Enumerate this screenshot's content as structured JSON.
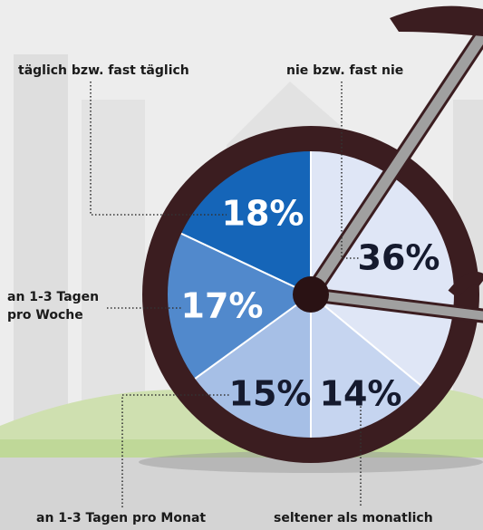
{
  "chart_data": {
    "type": "pie",
    "categories": [
      "nie bzw. fast nie",
      "seltener als monatlich",
      "an 1-3 Tagen pro Monat",
      "an 1-3 Tagen pro Woche",
      "täglich bzw. fast täglich"
    ],
    "values": [
      36,
      14,
      15,
      17,
      18
    ],
    "value_labels": [
      "36%",
      "14%",
      "15%",
      "17%",
      "18%"
    ],
    "colors": [
      "#dfe6f6",
      "#c6d5f0",
      "#a6bfe6",
      "#5189cc",
      "#1565b8"
    ]
  }
}
